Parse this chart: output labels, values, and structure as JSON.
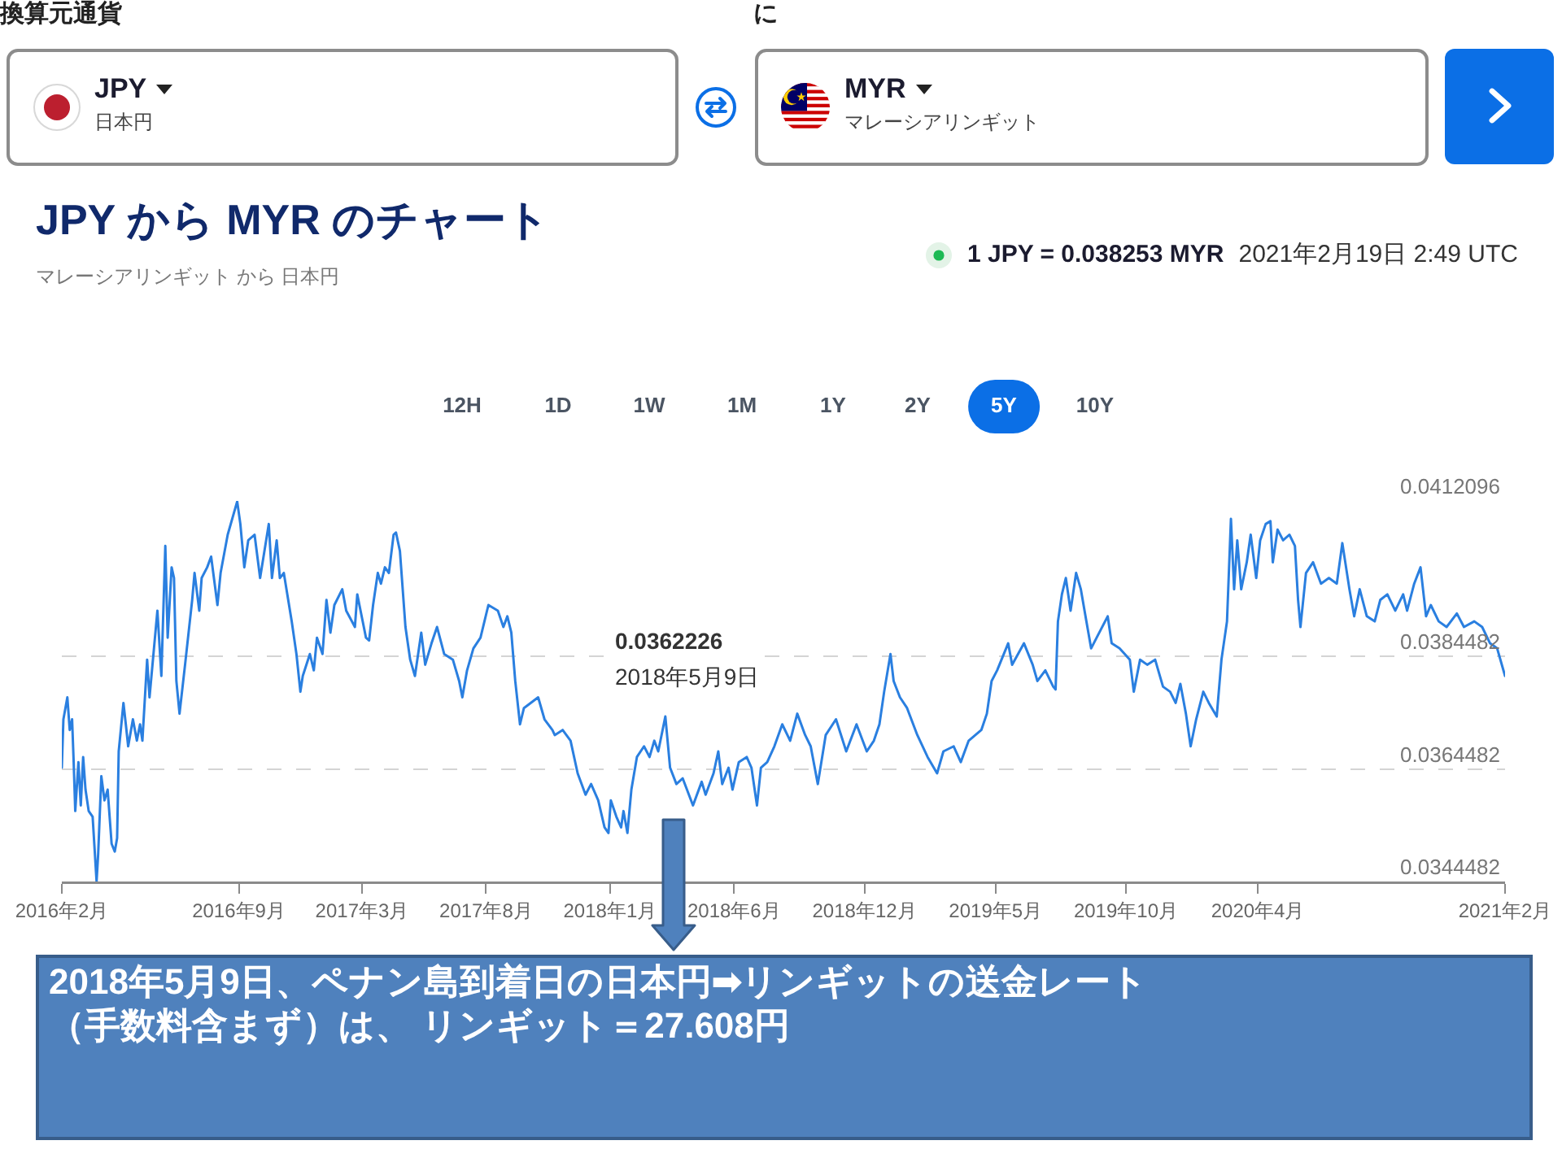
{
  "chart_data": {
    "type": "line",
    "title": "JPY から MYR のチャート",
    "subtitle": "マレーシアリンギット から 日本円",
    "annotations": [
      "換算元通貨",
      "に",
      "JPY",
      "日本円",
      "MYR",
      "マレーシアリンギット",
      "1 JPY = 0.038253 MYR",
      "2021年2月19日 2:49 UTC",
      "12H",
      "1D",
      "1W",
      "1M",
      "1Y",
      "2Y",
      "5Y",
      "10Y",
      "0.0362226\n2018年5月9日",
      "2018年5月9日、ペナン島到着日の日本円➡リンギットの送金レート（手数料含まず）は、 リンギット＝27.608円"
    ],
    "color": "#2a7fe0",
    "grid": "y",
    "xlim": [
      "2016-02-19",
      "2021-02-19"
    ],
    "xticks": [
      {
        "value": "2016-02-19",
        "label": "2016年2月"
      },
      {
        "value": "2016-09-30",
        "label": "2016年9月"
      },
      {
        "value": "2017-03-05",
        "label": "2017年3月"
      },
      {
        "value": "2017-08-09",
        "label": "2017年8月"
      },
      {
        "value": "2018-01-13",
        "label": "2018年1月"
      },
      {
        "value": "2018-06-19",
        "label": "2018年6月"
      },
      {
        "value": "2018-12-01",
        "label": "2018年12月"
      },
      {
        "value": "2019-05-16",
        "label": "2019年5月"
      },
      {
        "value": "2019-10-28",
        "label": "2019年10月"
      },
      {
        "value": "2020-04-12",
        "label": "2020年4月"
      },
      {
        "value": "2021-02-19",
        "label": "2021年2月"
      }
    ],
    "ylim": [
      0.0344482,
      0.0412096
    ],
    "yticks": [
      0.0344482,
      0.0364482,
      0.0384482,
      0.0412096
    ],
    "x": [
      "2016-02-19",
      "2016-02-21",
      "2016-02-26",
      "2016-02-29",
      "2016-03-03",
      "2016-03-05",
      "2016-03-07",
      "2016-03-11",
      "2016-03-14",
      "2016-03-17",
      "2016-03-20",
      "2016-03-24",
      "2016-03-29",
      "2016-04-03",
      "2016-04-05",
      "2016-04-09",
      "2016-04-13",
      "2016-04-17",
      "2016-04-22",
      "2016-04-26",
      "2016-04-29",
      "2016-05-01",
      "2016-05-07",
      "2016-05-10",
      "2016-05-13",
      "2016-05-19",
      "2016-05-24",
      "2016-05-28",
      "2016-05-31",
      "2016-06-06",
      "2016-06-09",
      "2016-06-19",
      "2016-06-24",
      "2016-06-29",
      "2016-07-02",
      "2016-07-07",
      "2016-07-10",
      "2016-07-13",
      "2016-07-17",
      "2016-07-24",
      "2016-08-02",
      "2016-08-05",
      "2016-08-11",
      "2016-08-14",
      "2016-08-21",
      "2016-08-26",
      "2016-09-03",
      "2016-09-07",
      "2016-09-16",
      "2016-09-28",
      "2016-10-02",
      "2016-10-07",
      "2016-10-12",
      "2016-10-20",
      "2016-10-27",
      "2016-11-07",
      "2016-11-11",
      "2016-11-17",
      "2016-11-21",
      "2016-11-26",
      "2016-12-06",
      "2016-12-12",
      "2016-12-17",
      "2016-12-20",
      "2016-12-29",
      "2017-01-03",
      "2017-01-07",
      "2017-01-14",
      "2017-01-19",
      "2017-01-24",
      "2017-01-29",
      "2017-02-08",
      "2017-02-13",
      "2017-02-24",
      "2017-02-27",
      "2017-03-10",
      "2017-03-14",
      "2017-03-19",
      "2017-03-25",
      "2017-03-29",
      "2017-04-03",
      "2017-04-08",
      "2017-04-14",
      "2017-04-17",
      "2017-04-22",
      "2017-04-29",
      "2017-05-05",
      "2017-05-11",
      "2017-05-19",
      "2017-05-24",
      "2017-06-01",
      "2017-06-08",
      "2017-06-17",
      "2017-06-28",
      "2017-07-06",
      "2017-07-10",
      "2017-07-16",
      "2017-07-24",
      "2017-08-02",
      "2017-08-12",
      "2017-08-24",
      "2017-08-31",
      "2017-09-05",
      "2017-09-10",
      "2017-09-15",
      "2017-09-21",
      "2017-09-26",
      "2017-10-14",
      "2017-10-22",
      "2017-11-01",
      "2017-11-04",
      "2017-11-14",
      "2017-11-24",
      "2017-12-03",
      "2017-12-13",
      "2017-12-20",
      "2017-12-29",
      "2018-01-06",
      "2018-01-11",
      "2018-01-14",
      "2018-01-21",
      "2018-01-27",
      "2018-01-30",
      "2018-02-04",
      "2018-02-09",
      "2018-02-16",
      "2018-02-25",
      "2018-03-04",
      "2018-03-10",
      "2018-03-15",
      "2018-03-24",
      "2018-03-30",
      "2018-04-07",
      "2018-04-15",
      "2018-04-28",
      "2018-05-09",
      "2018-05-14",
      "2018-05-24",
      "2018-05-30",
      "2018-06-04",
      "2018-06-12",
      "2018-06-17",
      "2018-06-25",
      "2018-07-05",
      "2018-07-11",
      "2018-07-18",
      "2018-07-23",
      "2018-07-31",
      "2018-08-09",
      "2018-08-19",
      "2018-08-29",
      "2018-09-07",
      "2018-09-17",
      "2018-09-24",
      "2018-10-03",
      "2018-10-13",
      "2018-10-26",
      "2018-11-08",
      "2018-11-21",
      "2018-12-04",
      "2018-12-13",
      "2018-12-20",
      "2018-12-26",
      "2019-01-03",
      "2019-01-07",
      "2019-01-15",
      "2019-01-24",
      "2019-02-06",
      "2019-02-19",
      "2019-03-03",
      "2019-03-11",
      "2019-03-24",
      "2019-04-02",
      "2019-04-12",
      "2019-04-28",
      "2019-05-05",
      "2019-05-11",
      "2019-05-18",
      "2019-06-01",
      "2019-06-06",
      "2019-06-21",
      "2019-07-02",
      "2019-07-08",
      "2019-07-18",
      "2019-07-28",
      "2019-07-31",
      "2019-08-03",
      "2019-08-08",
      "2019-08-13",
      "2019-08-19",
      "2019-08-26",
      "2019-09-01",
      "2019-09-08",
      "2019-09-14",
      "2019-09-21",
      "2019-10-05",
      "2019-10-10",
      "2019-10-20",
      "2019-11-02",
      "2019-11-07",
      "2019-11-15",
      "2019-11-24",
      "2019-12-04",
      "2019-12-14",
      "2019-12-23",
      "2019-12-30",
      "2020-01-05",
      "2020-01-12",
      "2020-01-18",
      "2020-01-25",
      "2020-02-03",
      "2020-02-10",
      "2020-02-20",
      "2020-02-26",
      "2020-03-04",
      "2020-03-09",
      "2020-03-13",
      "2020-03-17",
      "2020-03-22",
      "2020-03-29",
      "2020-04-03",
      "2020-04-10",
      "2020-04-15",
      "2020-04-22",
      "2020-04-28",
      "2020-05-01",
      "2020-05-07",
      "2020-05-14",
      "2020-05-22",
      "2020-05-29",
      "2020-06-02",
      "2020-06-05",
      "2020-06-12",
      "2020-06-21",
      "2020-07-01",
      "2020-07-11",
      "2020-07-21",
      "2020-07-28",
      "2020-08-06",
      "2020-08-12",
      "2020-08-19",
      "2020-08-28",
      "2020-09-07",
      "2020-09-14",
      "2020-09-23",
      "2020-10-03",
      "2020-10-13",
      "2020-10-18",
      "2020-10-27",
      "2020-11-04",
      "2020-11-11",
      "2020-11-17",
      "2020-11-27",
      "2020-12-07",
      "2020-12-20",
      "2020-12-29",
      "2021-01-11",
      "2021-01-21",
      "2021-01-31",
      "2021-02-09",
      "2021-02-19"
    ],
    "values": [
      0.03647,
      0.03733,
      0.03772,
      0.03714,
      0.03733,
      0.03657,
      0.0357,
      0.03657,
      0.0358,
      0.03666,
      0.03608,
      0.0357,
      0.0356,
      0.03445,
      0.03493,
      0.03632,
      0.03589,
      0.03608,
      0.03512,
      0.03498,
      0.03522,
      0.03676,
      0.03762,
      0.03724,
      0.03685,
      0.03733,
      0.03695,
      0.03724,
      0.03695,
      0.03839,
      0.03772,
      0.03926,
      0.0381,
      0.04041,
      0.03878,
      0.04003,
      0.03984,
      0.03801,
      0.03743,
      0.0383,
      0.03945,
      0.03993,
      0.03926,
      0.03984,
      0.04003,
      0.04022,
      0.03936,
      0.03993,
      0.04061,
      0.0412,
      0.0408,
      0.04003,
      0.04051,
      0.04061,
      0.03984,
      0.0408,
      0.03984,
      0.04051,
      0.03984,
      0.03993,
      0.03907,
      0.03849,
      0.03782,
      0.0381,
      0.03849,
      0.0382,
      0.03878,
      0.03849,
      0.03945,
      0.03887,
      0.03936,
      0.03964,
      0.03926,
      0.03897,
      0.03955,
      0.03878,
      0.03873,
      0.03936,
      0.03993,
      0.03974,
      0.04003,
      0.03993,
      0.04061,
      0.04065,
      0.04032,
      0.03897,
      0.03839,
      0.0381,
      0.03887,
      0.0383,
      0.03868,
      0.03897,
      0.03849,
      0.03839,
      0.03801,
      0.03772,
      0.0382,
      0.03859,
      0.03878,
      0.03936,
      0.03926,
      0.03897,
      0.03916,
      0.03887,
      0.03801,
      0.03724,
      0.03753,
      0.03772,
      0.03733,
      0.03714,
      0.03705,
      0.03714,
      0.03695,
      0.03637,
      0.03599,
      0.03618,
      0.03589,
      0.03541,
      0.03531,
      0.03589,
      0.0356,
      0.03541,
      0.0357,
      0.03531,
      0.03608,
      0.03666,
      0.03685,
      0.03666,
      0.03695,
      0.03676,
      0.03738,
      0.03647,
      0.03618,
      0.03628,
      0.0358,
      0.03622,
      0.03599,
      0.03637,
      0.03676,
      0.03618,
      0.03647,
      0.03608,
      0.03657,
      0.03666,
      0.03647,
      0.0358,
      0.03647,
      0.03657,
      0.03685,
      0.03724,
      0.03695,
      0.03743,
      0.03705,
      0.03685,
      0.03618,
      0.03705,
      0.03733,
      0.03676,
      0.03724,
      0.03676,
      0.03695,
      0.03724,
      0.03782,
      0.03849,
      0.03801,
      0.03772,
      0.03753,
      0.03705,
      0.03666,
      0.03637,
      0.03676,
      0.03685,
      0.03657,
      0.03695,
      0.03714,
      0.03743,
      0.03801,
      0.0382,
      0.03868,
      0.0383,
      0.03868,
      0.0383,
      0.03801,
      0.0382,
      0.03791,
      0.03786,
      0.03907,
      0.03955,
      0.03984,
      0.03926,
      0.03993,
      0.03964,
      0.03907,
      0.03859,
      0.03878,
      0.03916,
      0.03868,
      0.03859,
      0.03839,
      0.03782,
      0.03839,
      0.0383,
      0.03839,
      0.03791,
      0.03782,
      0.03762,
      0.03796,
      0.03743,
      0.03685,
      0.03733,
      0.03782,
      0.03762,
      0.03738,
      0.03839,
      0.03907,
      0.04089,
      0.03964,
      0.04051,
      0.03964,
      0.04012,
      0.04061,
      0.03984,
      0.04051,
      0.0408,
      0.04085,
      0.04012,
      0.0407,
      0.04051,
      0.04061,
      0.04041,
      0.03945,
      0.03897,
      0.03993,
      0.04012,
      0.03974,
      0.03984,
      0.03974,
      0.04046,
      0.03964,
      0.03916,
      0.03964,
      0.03916,
      0.03907,
      0.03945,
      0.03955,
      0.03926,
      0.03955,
      0.03926,
      0.03974,
      0.04003,
      0.03916,
      0.03936,
      0.03907,
      0.03897,
      0.03921,
      0.03897,
      0.03907,
      0.03897,
      0.03868,
      0.03859,
      0.0381
    ]
  }
}
